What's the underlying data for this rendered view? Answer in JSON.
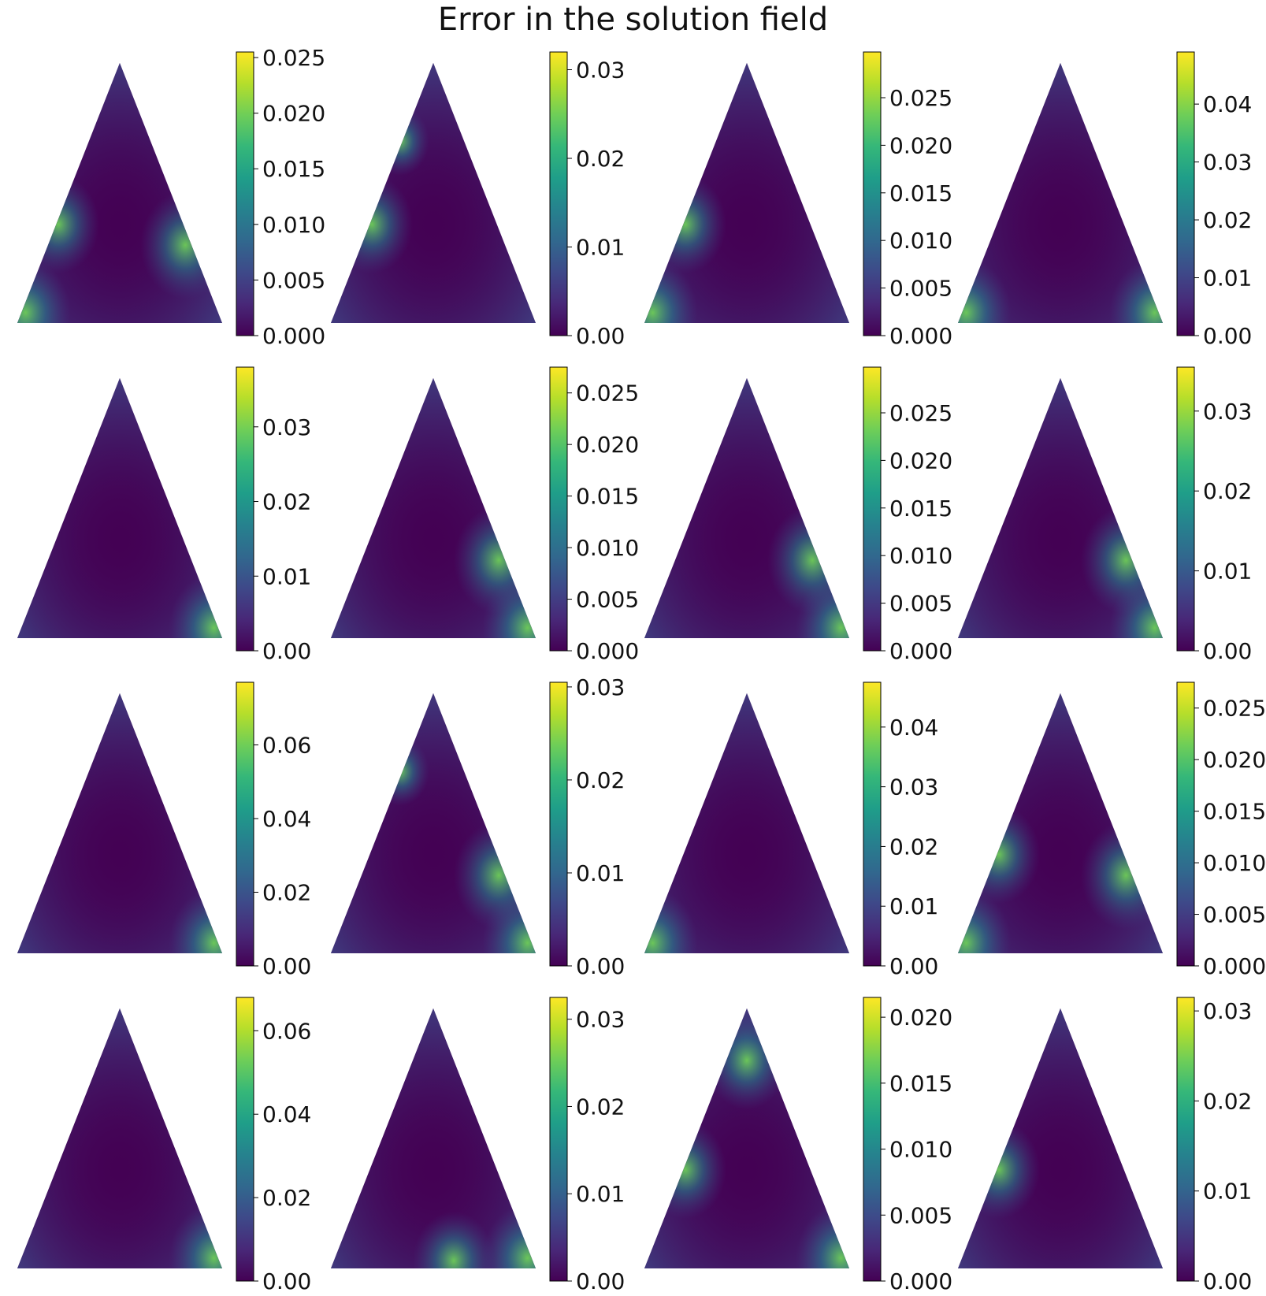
{
  "title": "Error in the solution field",
  "colormap": "viridis",
  "colormap_stops": [
    "#440154",
    "#482878",
    "#3e4989",
    "#31688e",
    "#26828e",
    "#1f9e89",
    "#35b779",
    "#6ece58",
    "#b5de2b",
    "#fde725"
  ],
  "chart_data": [
    {
      "type": "heatmap",
      "domain": "triangle",
      "ylim": [
        0,
        0.0255
      ],
      "ticks": [
        "0.000",
        "0.005",
        "0.010",
        "0.015",
        "0.020",
        "0.025"
      ],
      "tick_values": [
        0,
        0.005,
        0.01,
        0.015,
        0.02,
        0.025
      ],
      "hotspots": [
        "left-corner",
        "right-edge",
        "left-edge"
      ],
      "title": "",
      "xlabel": "",
      "ylabel": ""
    },
    {
      "type": "heatmap",
      "domain": "triangle",
      "ylim": [
        0,
        0.032
      ],
      "ticks": [
        "0.00",
        "0.01",
        "0.02",
        "0.03"
      ],
      "tick_values": [
        0,
        0.01,
        0.02,
        0.03
      ],
      "hotspots": [
        "upper-left-edge",
        "left-edge"
      ],
      "title": "",
      "xlabel": "",
      "ylabel": ""
    },
    {
      "type": "heatmap",
      "domain": "triangle",
      "ylim": [
        0,
        0.0298
      ],
      "ticks": [
        "0.000",
        "0.005",
        "0.010",
        "0.015",
        "0.020",
        "0.025"
      ],
      "tick_values": [
        0,
        0.005,
        0.01,
        0.015,
        0.02,
        0.025
      ],
      "hotspots": [
        "left-corner",
        "left-edge"
      ],
      "title": "",
      "xlabel": "",
      "ylabel": ""
    },
    {
      "type": "heatmap",
      "domain": "triangle",
      "ylim": [
        0,
        0.049
      ],
      "ticks": [
        "0.00",
        "0.01",
        "0.02",
        "0.03",
        "0.04"
      ],
      "tick_values": [
        0,
        0.01,
        0.02,
        0.03,
        0.04
      ],
      "hotspots": [
        "right-corner",
        "left-corner"
      ],
      "title": "",
      "xlabel": "",
      "ylabel": ""
    },
    {
      "type": "heatmap",
      "domain": "triangle",
      "ylim": [
        0,
        0.038
      ],
      "ticks": [
        "0.00",
        "0.01",
        "0.02",
        "0.03"
      ],
      "tick_values": [
        0,
        0.01,
        0.02,
        0.03
      ],
      "hotspots": [
        "right-corner"
      ],
      "title": "",
      "xlabel": "",
      "ylabel": ""
    },
    {
      "type": "heatmap",
      "domain": "triangle",
      "ylim": [
        0,
        0.0275
      ],
      "ticks": [
        "0.000",
        "0.005",
        "0.010",
        "0.015",
        "0.020",
        "0.025"
      ],
      "tick_values": [
        0,
        0.005,
        0.01,
        0.015,
        0.02,
        0.025
      ],
      "hotspots": [
        "right-edge",
        "right-corner"
      ],
      "title": "",
      "xlabel": "",
      "ylabel": ""
    },
    {
      "type": "heatmap",
      "domain": "triangle",
      "ylim": [
        0,
        0.0298
      ],
      "ticks": [
        "0.000",
        "0.005",
        "0.010",
        "0.015",
        "0.020",
        "0.025"
      ],
      "tick_values": [
        0,
        0.005,
        0.01,
        0.015,
        0.02,
        0.025
      ],
      "hotspots": [
        "right-corner",
        "right-edge"
      ],
      "title": "",
      "xlabel": "",
      "ylabel": ""
    },
    {
      "type": "heatmap",
      "domain": "triangle",
      "ylim": [
        0,
        0.0355
      ],
      "ticks": [
        "0.00",
        "0.01",
        "0.02",
        "0.03"
      ],
      "tick_values": [
        0,
        0.01,
        0.02,
        0.03
      ],
      "hotspots": [
        "right-corner",
        "right-edge"
      ],
      "title": "",
      "xlabel": "",
      "ylabel": ""
    },
    {
      "type": "heatmap",
      "domain": "triangle",
      "ylim": [
        0,
        0.077
      ],
      "ticks": [
        "0.00",
        "0.02",
        "0.04",
        "0.06"
      ],
      "tick_values": [
        0,
        0.02,
        0.04,
        0.06
      ],
      "hotspots": [
        "right-corner"
      ],
      "title": "",
      "xlabel": "",
      "ylabel": ""
    },
    {
      "type": "heatmap",
      "domain": "triangle",
      "ylim": [
        0,
        0.0305
      ],
      "ticks": [
        "0.00",
        "0.01",
        "0.02",
        "0.03"
      ],
      "tick_values": [
        0,
        0.01,
        0.02,
        0.03
      ],
      "hotspots": [
        "right-corner",
        "right-edge",
        "upper-left-edge"
      ],
      "title": "",
      "xlabel": "",
      "ylabel": ""
    },
    {
      "type": "heatmap",
      "domain": "triangle",
      "ylim": [
        0,
        0.0475
      ],
      "ticks": [
        "0.00",
        "0.01",
        "0.02",
        "0.03",
        "0.04"
      ],
      "tick_values": [
        0,
        0.01,
        0.02,
        0.03,
        0.04
      ],
      "hotspots": [
        "left-corner"
      ],
      "title": "",
      "xlabel": "",
      "ylabel": ""
    },
    {
      "type": "heatmap",
      "domain": "triangle",
      "ylim": [
        0,
        0.0275
      ],
      "ticks": [
        "0.000",
        "0.005",
        "0.010",
        "0.015",
        "0.020",
        "0.025"
      ],
      "tick_values": [
        0,
        0.005,
        0.01,
        0.015,
        0.02,
        0.025
      ],
      "hotspots": [
        "left-corner",
        "left-edge",
        "right-edge"
      ],
      "title": "",
      "xlabel": "",
      "ylabel": ""
    },
    {
      "type": "heatmap",
      "domain": "triangle",
      "ylim": [
        0,
        0.068
      ],
      "ticks": [
        "0.00",
        "0.02",
        "0.04",
        "0.06"
      ],
      "tick_values": [
        0,
        0.02,
        0.04,
        0.06
      ],
      "hotspots": [
        "right-corner"
      ],
      "title": "",
      "xlabel": "",
      "ylabel": ""
    },
    {
      "type": "heatmap",
      "domain": "triangle",
      "ylim": [
        0,
        0.0325
      ],
      "ticks": [
        "0.00",
        "0.01",
        "0.02",
        "0.03"
      ],
      "tick_values": [
        0,
        0.01,
        0.02,
        0.03
      ],
      "hotspots": [
        "right-corner",
        "bottom-edge"
      ],
      "title": "",
      "xlabel": "",
      "ylabel": ""
    },
    {
      "type": "heatmap",
      "domain": "triangle",
      "ylim": [
        0,
        0.0215
      ],
      "ticks": [
        "0.000",
        "0.005",
        "0.010",
        "0.015",
        "0.020"
      ],
      "tick_values": [
        0,
        0.005,
        0.01,
        0.015,
        0.02
      ],
      "hotspots": [
        "apex",
        "left-edge",
        "right-corner"
      ],
      "title": "",
      "xlabel": "",
      "ylabel": ""
    },
    {
      "type": "heatmap",
      "domain": "triangle",
      "ylim": [
        0,
        0.0315
      ],
      "ticks": [
        "0.00",
        "0.01",
        "0.02",
        "0.03"
      ],
      "tick_values": [
        0,
        0.01,
        0.02,
        0.03
      ],
      "hotspots": [
        "left-edge"
      ],
      "title": "",
      "xlabel": "",
      "ylabel": ""
    }
  ]
}
